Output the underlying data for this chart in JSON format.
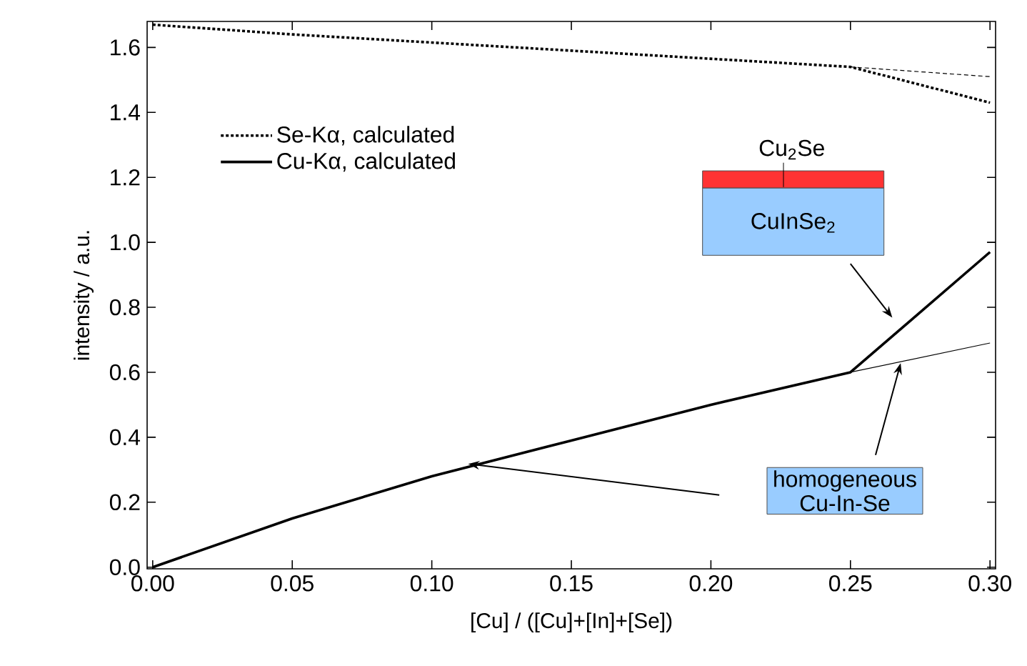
{
  "chart_data": {
    "type": "line",
    "xlabel": "[Cu] / ([Cu]+[In]+[Se])",
    "ylabel": "intensity / a.u.",
    "xlim": [
      -0.002,
      0.302
    ],
    "ylim": [
      -0.005,
      1.68
    ],
    "xticks": [
      {
        "value": 0,
        "label": "0.00"
      },
      0.05,
      {
        "value": 0.1,
        "label": "0.10"
      },
      0.15,
      {
        "value": 0.2,
        "label": "0.20"
      },
      0.25,
      {
        "value": 0.3,
        "label": "0.30"
      }
    ],
    "yticks": [
      {
        "value": 0,
        "label": "0.0"
      },
      0.2,
      0.4,
      0.6,
      0.8,
      {
        "value": 1,
        "label": "1.0"
      },
      1.2,
      1.4,
      1.6
    ],
    "series": [
      {
        "name": "Se-Kα, calculated",
        "color": "#000000",
        "line_style": "dotted",
        "x": [
          0,
          0.05,
          0.1,
          0.15,
          0.2,
          0.25,
          0.3
        ],
        "values": [
          1.67,
          1.64,
          1.615,
          1.59,
          1.565,
          1.54,
          1.43
        ]
      },
      {
        "name": "Cu-Kα, calculated",
        "color": "#000000",
        "line_style": "solid",
        "x": [
          0,
          0.05,
          0.1,
          0.15,
          0.2,
          0.25,
          0.3
        ],
        "values": [
          0,
          0.15,
          0.28,
          0.39,
          0.5,
          0.6,
          0.97
        ]
      },
      {
        "color": "#000000",
        "line_style": "dashed",
        "x": [
          0.25,
          0.3
        ],
        "values": [
          1.54,
          1.51
        ]
      },
      {
        "color": "#000000",
        "line_style": "solid",
        "x": [
          0.25,
          0.3
        ],
        "values": [
          0.6,
          0.69
        ]
      }
    ],
    "legend": "top left",
    "marker": "none",
    "annotations": [
      "Cu$_{2}$Se",
      "CuInSe$_{2}$",
      "homogeneous",
      "Cu-In-Se"
    ]
  }
}
